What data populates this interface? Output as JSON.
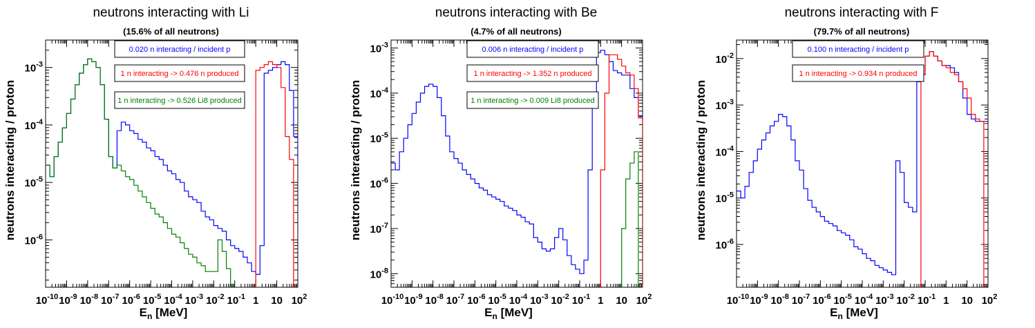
{
  "colors": {
    "blue": "#0000ff",
    "red": "#ff0000",
    "green": "#008000",
    "green_hist": "#22aa22",
    "dark_overlap": "#006644",
    "frame": "#000000"
  },
  "x_axis": {
    "label_main": "E",
    "label_sub": "n",
    "label_unit": " [MeV]",
    "ticks": [
      {
        "base": "10",
        "exp": "-10"
      },
      {
        "base": "10",
        "exp": "-9"
      },
      {
        "base": "10",
        "exp": "-8"
      },
      {
        "base": "10",
        "exp": "-7"
      },
      {
        "base": "10",
        "exp": "-6"
      },
      {
        "base": "10",
        "exp": "-5"
      },
      {
        "base": "10",
        "exp": "-4"
      },
      {
        "base": "10",
        "exp": "-3"
      },
      {
        "base": "10",
        "exp": "-2"
      },
      {
        "base": "10",
        "exp": "-1"
      },
      {
        "base": "1",
        "exp": ""
      },
      {
        "base": "10",
        "exp": ""
      },
      {
        "base": "10",
        "exp": "2"
      }
    ]
  },
  "y_axis_label": "neutrons interacting / proton",
  "chart_data": [
    {
      "type": "line",
      "title": "neutrons interacting with Li",
      "subtitle": "(15.6% of all neutrons)",
      "xlabel": "E_n [MeV]",
      "ylabel": "neutrons interacting / proton",
      "x_scale": "log",
      "y_scale": "log",
      "xlim": [
        1e-10,
        100
      ],
      "ylim": [
        1.5e-07,
        0.003
      ],
      "y_ticks": [
        {
          "base": "10",
          "exp": "-6",
          "v": -6
        },
        {
          "base": "10",
          "exp": "-5",
          "v": -5
        },
        {
          "base": "10",
          "exp": "-4",
          "v": -4
        },
        {
          "base": "10",
          "exp": "-3",
          "v": -3
        }
      ],
      "legend": [
        {
          "text": "0.020 n interacting / incident p",
          "color": "blue"
        },
        {
          "text": "1 n interacting -> 0.476 n produced",
          "color": "red"
        },
        {
          "text": "1 n interacting -> 0.526 Li8 produced",
          "color": "green"
        }
      ],
      "series": [
        {
          "name": "0.020 n interacting / incident p",
          "color": "blue",
          "log_x": [
            -10,
            -9.8,
            -9.6,
            -9.4,
            -9.2,
            -9.0,
            -8.8,
            -8.6,
            -8.4,
            -8.2,
            -8.0,
            -7.8,
            -7.6,
            -7.4,
            -7.2,
            -7.0,
            -6.8,
            -6.6,
            -6.4,
            -6.2,
            -6.0,
            -5.8,
            -5.6,
            -5.4,
            -5.2,
            -5.0,
            -4.8,
            -4.6,
            -4.4,
            -4.2,
            -4.0,
            -3.8,
            -3.6,
            -3.4,
            -3.2,
            -3.0,
            -2.8,
            -2.6,
            -2.4,
            -2.2,
            -2.0,
            -1.8,
            -1.6,
            -1.4,
            -1.2,
            -1.0,
            -0.8,
            -0.6,
            -0.4,
            -0.2,
            0.0,
            0.2,
            0.4,
            0.6,
            0.8,
            1.0,
            1.2,
            1.4,
            1.6,
            1.8,
            2.0
          ],
          "log_y": [
            -4.7,
            -4.9,
            -4.55,
            -4.3,
            -4.05,
            -3.8,
            -3.55,
            -3.3,
            -3.1,
            -2.95,
            -2.85,
            -2.9,
            -3.0,
            -3.3,
            -3.9,
            -4.55,
            -4.75,
            -4.1,
            -3.95,
            -4.0,
            -4.1,
            -4.15,
            -4.25,
            -4.3,
            -4.4,
            -4.45,
            -4.55,
            -4.6,
            -4.7,
            -4.8,
            -4.85,
            -4.95,
            -5.0,
            -5.15,
            -5.25,
            -5.3,
            -5.35,
            -5.5,
            -5.6,
            -5.65,
            -5.75,
            -5.8,
            -5.85,
            -6.0,
            -6.1,
            -6.15,
            -6.2,
            -6.3,
            -6.4,
            -6.55,
            -6.6,
            -6.1,
            -3.1,
            -3.05,
            -3.0,
            -2.95,
            -2.9,
            -2.95,
            -3.4,
            -4.2,
            -4.6
          ]
        },
        {
          "name": "1 n interacting -> 0.476 n produced",
          "color": "red",
          "log_x": [
            -0.2,
            0.0,
            0.2,
            0.4,
            0.6,
            0.8,
            1.0,
            1.2,
            1.4,
            1.6,
            1.8,
            2.0
          ],
          "log_y": [
            -9,
            -3.05,
            -3.0,
            -2.95,
            -2.9,
            -2.95,
            -3.0,
            -3.35,
            -4.2,
            -4.6,
            -9,
            -9
          ]
        },
        {
          "name": "1 n interacting -> 0.526 Li8 produced",
          "color": "green",
          "log_x": [
            -10,
            -9.8,
            -9.6,
            -9.4,
            -9.2,
            -9.0,
            -8.8,
            -8.6,
            -8.4,
            -8.2,
            -8.0,
            -7.8,
            -7.6,
            -7.4,
            -7.2,
            -7.0,
            -6.8,
            -6.6,
            -6.4,
            -6.2,
            -6.0,
            -5.8,
            -5.6,
            -5.4,
            -5.2,
            -5.0,
            -4.8,
            -4.6,
            -4.4,
            -4.2,
            -4.0,
            -3.8,
            -3.6,
            -3.4,
            -3.2,
            -3.0,
            -2.8,
            -2.6,
            -2.4,
            -2.2,
            -2.0,
            -1.8,
            -1.6,
            -1.4,
            -1.2,
            -1.0
          ],
          "log_y": [
            -4.7,
            -4.9,
            -4.55,
            -4.3,
            -4.05,
            -3.8,
            -3.55,
            -3.3,
            -3.1,
            -2.95,
            -2.85,
            -2.9,
            -3.0,
            -3.3,
            -3.9,
            -4.55,
            -4.75,
            -4.7,
            -4.8,
            -4.9,
            -4.95,
            -5.05,
            -5.15,
            -5.25,
            -5.35,
            -5.45,
            -5.55,
            -5.6,
            -5.7,
            -5.8,
            -5.9,
            -5.95,
            -6.05,
            -6.15,
            -6.25,
            -6.3,
            -6.4,
            -6.45,
            -6.55,
            -6.55,
            -6.55,
            -6.0,
            -6.2,
            -6.5,
            -7.0,
            -9
          ]
        }
      ]
    },
    {
      "type": "line",
      "title": "neutrons interacting with Be",
      "subtitle": "(4.7% of all neutrons)",
      "xlabel": "E_n [MeV]",
      "ylabel": "neutrons interacting / proton",
      "x_scale": "log",
      "y_scale": "log",
      "xlim": [
        1e-10,
        100
      ],
      "ylim": [
        5e-09,
        0.0015
      ],
      "y_ticks": [
        {
          "base": "10",
          "exp": "-8",
          "v": -8
        },
        {
          "base": "10",
          "exp": "-7",
          "v": -7
        },
        {
          "base": "10",
          "exp": "-6",
          "v": -6
        },
        {
          "base": "10",
          "exp": "-5",
          "v": -5
        },
        {
          "base": "10",
          "exp": "-4",
          "v": -4
        },
        {
          "base": "10",
          "exp": "-3",
          "v": -3
        }
      ],
      "legend": [
        {
          "text": "0.006 n interacting / incident p",
          "color": "blue"
        },
        {
          "text": "1 n interacting -> 1.352 n produced",
          "color": "red"
        },
        {
          "text": "1 n interacting -> 0.009 Li8 produced",
          "color": "green"
        }
      ],
      "series": [
        {
          "name": "0.006 n interacting / incident p",
          "color": "blue",
          "log_x": [
            -10,
            -9.8,
            -9.6,
            -9.4,
            -9.2,
            -9.0,
            -8.8,
            -8.6,
            -8.4,
            -8.2,
            -8.0,
            -7.8,
            -7.6,
            -7.4,
            -7.2,
            -7.0,
            -6.8,
            -6.6,
            -6.4,
            -6.2,
            -6.0,
            -5.8,
            -5.6,
            -5.4,
            -5.2,
            -5.0,
            -4.8,
            -4.6,
            -4.4,
            -4.2,
            -4.0,
            -3.8,
            -3.6,
            -3.4,
            -3.2,
            -3.0,
            -2.8,
            -2.6,
            -2.4,
            -2.2,
            -2.0,
            -1.8,
            -1.6,
            -1.4,
            -1.2,
            -1.0,
            -0.8,
            -0.6,
            -0.4,
            -0.2,
            0.0,
            0.2,
            0.4,
            0.6,
            0.8,
            1.0,
            1.2,
            1.4,
            1.6,
            1.8,
            2.0
          ],
          "log_y": [
            -5.55,
            -5.7,
            -5.3,
            -5.0,
            -4.7,
            -4.45,
            -4.2,
            -4.0,
            -3.85,
            -3.8,
            -3.85,
            -4.1,
            -4.5,
            -4.95,
            -5.3,
            -5.45,
            -5.55,
            -5.7,
            -5.8,
            -5.9,
            -6.0,
            -6.1,
            -6.15,
            -6.25,
            -6.3,
            -6.35,
            -6.4,
            -6.5,
            -6.55,
            -6.6,
            -6.7,
            -6.75,
            -6.85,
            -6.9,
            -7.2,
            -7.3,
            -7.45,
            -7.5,
            -7.45,
            -7.2,
            -7.0,
            -7.25,
            -7.6,
            -7.8,
            -7.9,
            -8.0,
            -7.7,
            -5.7,
            -4.0,
            -3.1,
            -3.05,
            -3.15,
            -3.3,
            -3.5,
            -3.55,
            -3.6,
            -3.6,
            -3.9,
            -4.1,
            -4.5,
            -4.6
          ]
        },
        {
          "name": "1 n interacting -> 1.352 n produced",
          "color": "red",
          "log_x": [
            -0.2,
            0.0,
            0.2,
            0.4,
            0.6,
            0.8,
            1.0,
            1.2,
            1.4,
            1.6,
            1.8,
            2.0
          ],
          "log_y": [
            -9,
            -5.7,
            -4.0,
            -3.15,
            -3.15,
            -3.25,
            -3.4,
            -3.55,
            -3.6,
            -3.9,
            -4.55,
            -9
          ]
        },
        {
          "name": "1 n interacting -> 0.009 Li8 produced",
          "color": "green",
          "log_x": [
            0.8,
            1.0,
            1.2,
            1.4,
            1.6,
            1.8,
            2.0
          ],
          "log_y": [
            -9,
            -7.0,
            -5.9,
            -5.55,
            -5.3,
            -9,
            -9
          ]
        }
      ]
    },
    {
      "type": "line",
      "title": "neutrons interacting with F",
      "subtitle": "(79.7% of all neutrons)",
      "xlabel": "E_n [MeV]",
      "ylabel": "neutrons interacting / proton",
      "x_scale": "log",
      "y_scale": "log",
      "xlim": [
        1e-10,
        100
      ],
      "ylim": [
        1.2e-07,
        0.025
      ],
      "y_ticks": [
        {
          "base": "10",
          "exp": "-6",
          "v": -6
        },
        {
          "base": "10",
          "exp": "-5",
          "v": -5
        },
        {
          "base": "10",
          "exp": "-4",
          "v": -4
        },
        {
          "base": "10",
          "exp": "-3",
          "v": -3
        },
        {
          "base": "10",
          "exp": "-2",
          "v": -2
        }
      ],
      "legend": [
        {
          "text": "0.100 n interacting / incident p",
          "color": "blue"
        },
        {
          "text": "1 n interacting -> 0.934 n produced",
          "color": "red"
        }
      ],
      "series": [
        {
          "name": "0.100 n interacting / incident p",
          "color": "blue",
          "log_x": [
            -10,
            -9.8,
            -9.6,
            -9.4,
            -9.2,
            -9.0,
            -8.8,
            -8.6,
            -8.4,
            -8.2,
            -8.0,
            -7.8,
            -7.6,
            -7.4,
            -7.2,
            -7.0,
            -6.8,
            -6.6,
            -6.4,
            -6.2,
            -6.0,
            -5.8,
            -5.6,
            -5.4,
            -5.2,
            -5.0,
            -4.8,
            -4.6,
            -4.4,
            -4.2,
            -4.0,
            -3.8,
            -3.6,
            -3.4,
            -3.2,
            -3.0,
            -2.8,
            -2.6,
            -2.4,
            -2.2,
            -2.0,
            -1.8,
            -1.6,
            -1.4,
            -1.2,
            -1.0,
            -0.8,
            -0.6,
            -0.4,
            -0.2,
            0.0,
            0.2,
            0.4,
            0.6,
            0.8,
            1.0,
            1.2,
            1.4,
            1.6,
            1.8,
            2.0
          ],
          "log_y": [
            -4.85,
            -5.0,
            -4.75,
            -4.45,
            -4.2,
            -3.95,
            -3.75,
            -3.6,
            -3.45,
            -3.35,
            -3.2,
            -3.25,
            -3.45,
            -3.75,
            -4.2,
            -4.4,
            -4.8,
            -5.05,
            -5.2,
            -5.3,
            -5.4,
            -5.5,
            -5.55,
            -5.6,
            -5.7,
            -5.75,
            -5.8,
            -5.9,
            -6.05,
            -6.1,
            -6.2,
            -6.3,
            -6.35,
            -6.45,
            -6.5,
            -6.55,
            -6.6,
            -6.65,
            -4.2,
            -4.45,
            -5.1,
            -5.2,
            -5.3,
            -2.5,
            -2.35,
            -1.95,
            -1.85,
            -1.95,
            -2.05,
            -2.15,
            -2.15,
            -2.2,
            -2.3,
            -2.5,
            -2.85,
            -3.2,
            -3.3,
            -3.35,
            -3.35,
            -3.35,
            -3.35
          ]
        },
        {
          "name": "1 n interacting -> 0.934 n produced",
          "color": "red",
          "log_x": [
            -1.4,
            -1.2,
            -1.0,
            -0.8,
            -0.6,
            -0.4,
            -0.2,
            0.0,
            0.2,
            0.4,
            0.6,
            0.8,
            1.0,
            1.2,
            1.4,
            1.6,
            1.8,
            2.0
          ],
          "log_y": [
            -9,
            -2.35,
            -1.95,
            -1.85,
            -1.95,
            -2.05,
            -2.15,
            -2.2,
            -2.3,
            -2.35,
            -2.5,
            -2.65,
            -2.85,
            -3.2,
            -3.3,
            -3.35,
            -9,
            -9
          ]
        }
      ]
    }
  ]
}
